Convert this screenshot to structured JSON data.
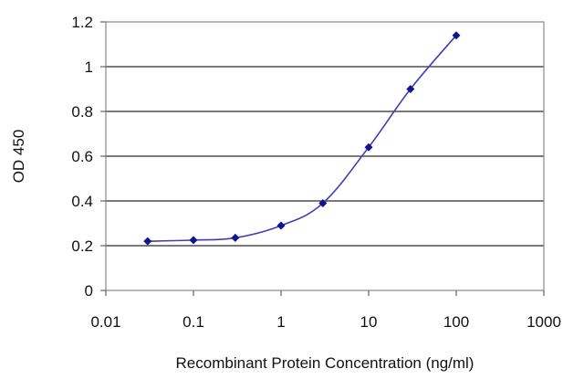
{
  "chart_data": {
    "type": "line",
    "title": "",
    "xlabel": "Recombinant Protein Concentration (ng/ml)",
    "ylabel": "OD 450",
    "x_scale": "log",
    "xlim": [
      0.01,
      1000
    ],
    "ylim": [
      0,
      1.2
    ],
    "x_ticks": [
      0.01,
      0.1,
      1,
      10,
      100,
      1000
    ],
    "x_tick_labels": [
      "0.01",
      "0.1",
      "1",
      "10",
      "100",
      "1000"
    ],
    "y_ticks": [
      0,
      0.2,
      0.4,
      0.6,
      0.8,
      1,
      1.2
    ],
    "y_tick_labels": [
      "0",
      "0.2",
      "0.4",
      "0.6",
      "0.8",
      "1",
      "1.2"
    ],
    "grid": "horizontal",
    "legend": "none",
    "series": [
      {
        "x": [
          0.03,
          0.1,
          0.3,
          1,
          3,
          10,
          30,
          100
        ],
        "y": [
          0.22,
          0.225,
          0.235,
          0.29,
          0.39,
          0.64,
          0.9,
          1.14
        ],
        "color": "#1f1fa8",
        "marker": "diamond"
      }
    ],
    "colors": {
      "plot_background": "#ffffff",
      "gridline": "#2a2a2a",
      "frame": "#8a8a8a",
      "line": "#3d3db8",
      "marker": "#13138f"
    }
  }
}
